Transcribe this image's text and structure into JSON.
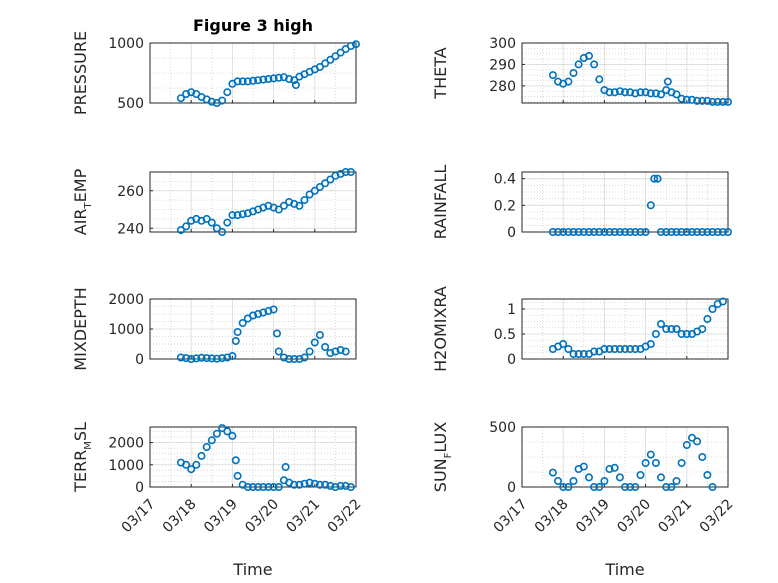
{
  "figure": {
    "title": "Figure 3 high",
    "xlabel": "Time",
    "date_ticks": [
      "03/17",
      "03/18",
      "03/19",
      "03/20",
      "03/21",
      "03/22"
    ],
    "marker_color": "#0072BD"
  },
  "chart_data": [
    {
      "type": "scatter",
      "ylabel": "PRESSURE",
      "ylim": [
        500,
        1000
      ],
      "yticks": [
        500,
        1000
      ],
      "grid": true,
      "x_range": [
        "2019-03-17",
        "2019-03-22"
      ],
      "points": [
        [
          "03/17 18:00",
          540
        ],
        [
          "03/17 21:00",
          575
        ],
        [
          "03/18 00:00",
          590
        ],
        [
          "03/18 03:00",
          575
        ],
        [
          "03/18 06:00",
          550
        ],
        [
          "03/18 09:00",
          530
        ],
        [
          "03/18 12:00",
          510
        ],
        [
          "03/18 15:00",
          500
        ],
        [
          "03/18 18:00",
          520
        ],
        [
          "03/18 21:00",
          590
        ],
        [
          "03/19 00:00",
          660
        ],
        [
          "03/19 03:00",
          680
        ],
        [
          "03/19 06:00",
          680
        ],
        [
          "03/19 09:00",
          680
        ],
        [
          "03/19 12:00",
          685
        ],
        [
          "03/19 15:00",
          690
        ],
        [
          "03/19 18:00",
          695
        ],
        [
          "03/19 21:00",
          700
        ],
        [
          "03/20 00:00",
          705
        ],
        [
          "03/20 03:00",
          710
        ],
        [
          "03/20 06:00",
          715
        ],
        [
          "03/20 09:00",
          700
        ],
        [
          "03/20 12:00",
          690
        ],
        [
          "03/20 13:00",
          650
        ],
        [
          "03/20 15:00",
          720
        ],
        [
          "03/20 18:00",
          740
        ],
        [
          "03/20 21:00",
          760
        ],
        [
          "03/21 00:00",
          780
        ],
        [
          "03/21 03:00",
          800
        ],
        [
          "03/21 06:00",
          830
        ],
        [
          "03/21 09:00",
          860
        ],
        [
          "03/21 12:00",
          890
        ],
        [
          "03/21 15:00",
          920
        ],
        [
          "03/21 18:00",
          950
        ],
        [
          "03/21 21:00",
          975
        ],
        [
          "03/22 00:00",
          990
        ]
      ]
    },
    {
      "type": "scatter",
      "ylabel": "THETA",
      "ylim": [
        272,
        300
      ],
      "yticks": [
        280,
        290,
        300
      ],
      "grid": true,
      "x_range": [
        "2019-03-17",
        "2019-03-22"
      ],
      "points": [
        [
          "03/17 18:00",
          285
        ],
        [
          "03/17 21:00",
          282
        ],
        [
          "03/18 00:00",
          281
        ],
        [
          "03/18 03:00",
          282
        ],
        [
          "03/18 06:00",
          286
        ],
        [
          "03/18 09:00",
          290
        ],
        [
          "03/18 12:00",
          293
        ],
        [
          "03/18 15:00",
          294
        ],
        [
          "03/18 18:00",
          290
        ],
        [
          "03/18 21:00",
          283
        ],
        [
          "03/19 00:00",
          278
        ],
        [
          "03/19 03:00",
          277
        ],
        [
          "03/19 06:00",
          277
        ],
        [
          "03/19 09:00",
          277.5
        ],
        [
          "03/19 12:00",
          277
        ],
        [
          "03/19 15:00",
          277
        ],
        [
          "03/19 18:00",
          276.5
        ],
        [
          "03/19 21:00",
          277
        ],
        [
          "03/20 00:00",
          277
        ],
        [
          "03/20 03:00",
          276.5
        ],
        [
          "03/20 06:00",
          276.5
        ],
        [
          "03/20 09:00",
          276
        ],
        [
          "03/20 12:00",
          278
        ],
        [
          "03/20 13:00",
          282
        ],
        [
          "03/20 15:00",
          277
        ],
        [
          "03/20 18:00",
          276
        ],
        [
          "03/20 21:00",
          274
        ],
        [
          "03/21 00:00",
          273.5
        ],
        [
          "03/21 03:00",
          273.5
        ],
        [
          "03/21 06:00",
          273
        ],
        [
          "03/21 09:00",
          273
        ],
        [
          "03/21 12:00",
          273
        ],
        [
          "03/21 15:00",
          272.5
        ],
        [
          "03/21 18:00",
          272.5
        ],
        [
          "03/21 21:00",
          272.5
        ],
        [
          "03/22 00:00",
          272.5
        ]
      ]
    },
    {
      "type": "scatter",
      "ylabel": "AIR_TEMP",
      "ylabel_parts": [
        "AIR",
        "T",
        "EMP"
      ],
      "ylim": [
        238,
        270
      ],
      "yticks": [
        240,
        260
      ],
      "grid": true,
      "x_range": [
        "2019-03-17",
        "2019-03-22"
      ],
      "points": [
        [
          "03/17 18:00",
          239
        ],
        [
          "03/17 21:00",
          241
        ],
        [
          "03/18 00:00",
          244
        ],
        [
          "03/18 03:00",
          245
        ],
        [
          "03/18 06:00",
          244
        ],
        [
          "03/18 09:00",
          245
        ],
        [
          "03/18 12:00",
          243
        ],
        [
          "03/18 15:00",
          240
        ],
        [
          "03/18 18:00",
          238
        ],
        [
          "03/18 21:00",
          243
        ],
        [
          "03/19 00:00",
          247
        ],
        [
          "03/19 03:00",
          247
        ],
        [
          "03/19 06:00",
          247.5
        ],
        [
          "03/19 09:00",
          248
        ],
        [
          "03/19 12:00",
          249
        ],
        [
          "03/19 15:00",
          250
        ],
        [
          "03/19 18:00",
          251
        ],
        [
          "03/19 21:00",
          252
        ],
        [
          "03/20 00:00",
          251
        ],
        [
          "03/20 03:00",
          250
        ],
        [
          "03/20 06:00",
          252
        ],
        [
          "03/20 09:00",
          254
        ],
        [
          "03/20 12:00",
          253
        ],
        [
          "03/20 15:00",
          252
        ],
        [
          "03/20 18:00",
          255
        ],
        [
          "03/20 21:00",
          258
        ],
        [
          "03/21 00:00",
          260
        ],
        [
          "03/21 03:00",
          262
        ],
        [
          "03/21 06:00",
          264
        ],
        [
          "03/21 09:00",
          266
        ],
        [
          "03/21 12:00",
          268
        ],
        [
          "03/21 15:00",
          269
        ],
        [
          "03/21 18:00",
          270
        ],
        [
          "03/21 21:00",
          270
        ]
      ]
    },
    {
      "type": "scatter",
      "ylabel": "RAINFALL",
      "ylim": [
        0,
        0.45
      ],
      "yticks": [
        0,
        0.2,
        0.4
      ],
      "grid": true,
      "x_range": [
        "2019-03-17",
        "2019-03-22"
      ],
      "points": [
        [
          "03/17 18:00",
          0
        ],
        [
          "03/17 21:00",
          0
        ],
        [
          "03/18 00:00",
          0
        ],
        [
          "03/18 03:00",
          0
        ],
        [
          "03/18 06:00",
          0
        ],
        [
          "03/18 09:00",
          0
        ],
        [
          "03/18 12:00",
          0
        ],
        [
          "03/18 15:00",
          0
        ],
        [
          "03/18 18:00",
          0
        ],
        [
          "03/18 21:00",
          0
        ],
        [
          "03/19 00:00",
          0
        ],
        [
          "03/19 03:00",
          0
        ],
        [
          "03/19 06:00",
          0
        ],
        [
          "03/19 09:00",
          0
        ],
        [
          "03/19 12:00",
          0
        ],
        [
          "03/19 15:00",
          0
        ],
        [
          "03/19 18:00",
          0
        ],
        [
          "03/19 21:00",
          0
        ],
        [
          "03/20 00:00",
          0
        ],
        [
          "03/20 03:00",
          0.2
        ],
        [
          "03/20 05:00",
          0.4
        ],
        [
          "03/20 07:00",
          0.4
        ],
        [
          "03/20 09:00",
          0
        ],
        [
          "03/20 12:00",
          0
        ],
        [
          "03/20 15:00",
          0
        ],
        [
          "03/20 18:00",
          0
        ],
        [
          "03/20 21:00",
          0
        ],
        [
          "03/21 00:00",
          0
        ],
        [
          "03/21 03:00",
          0
        ],
        [
          "03/21 06:00",
          0
        ],
        [
          "03/21 09:00",
          0
        ],
        [
          "03/21 12:00",
          0
        ],
        [
          "03/21 15:00",
          0
        ],
        [
          "03/21 18:00",
          0
        ],
        [
          "03/21 21:00",
          0
        ],
        [
          "03/22 00:00",
          0
        ]
      ]
    },
    {
      "type": "scatter",
      "ylabel": "MIXDEPTH",
      "ylim": [
        0,
        2000
      ],
      "yticks": [
        0,
        1000,
        2000
      ],
      "grid": true,
      "x_range": [
        "2019-03-17",
        "2019-03-22"
      ],
      "points": [
        [
          "03/17 18:00",
          50
        ],
        [
          "03/17 21:00",
          30
        ],
        [
          "03/18 00:00",
          0
        ],
        [
          "03/18 03:00",
          20
        ],
        [
          "03/18 06:00",
          40
        ],
        [
          "03/18 09:00",
          30
        ],
        [
          "03/18 12:00",
          20
        ],
        [
          "03/18 15:00",
          10
        ],
        [
          "03/18 18:00",
          30
        ],
        [
          "03/18 21:00",
          50
        ],
        [
          "03/19 00:00",
          100
        ],
        [
          "03/19 02:00",
          600
        ],
        [
          "03/19 03:00",
          900
        ],
        [
          "03/19 06:00",
          1200
        ],
        [
          "03/19 09:00",
          1350
        ],
        [
          "03/19 12:00",
          1450
        ],
        [
          "03/19 15:00",
          1500
        ],
        [
          "03/19 18:00",
          1550
        ],
        [
          "03/19 21:00",
          1600
        ],
        [
          "03/20 00:00",
          1650
        ],
        [
          "03/20 02:00",
          850
        ],
        [
          "03/20 03:00",
          250
        ],
        [
          "03/20 06:00",
          50
        ],
        [
          "03/20 09:00",
          0
        ],
        [
          "03/20 12:00",
          0
        ],
        [
          "03/20 15:00",
          0
        ],
        [
          "03/20 18:00",
          50
        ],
        [
          "03/20 21:00",
          250
        ],
        [
          "03/21 00:00",
          550
        ],
        [
          "03/21 03:00",
          800
        ],
        [
          "03/21 06:00",
          400
        ],
        [
          "03/21 09:00",
          200
        ],
        [
          "03/21 12:00",
          250
        ],
        [
          "03/21 15:00",
          300
        ],
        [
          "03/21 18:00",
          250
        ]
      ]
    },
    {
      "type": "scatter",
      "ylabel": "H2OMIXRA",
      "ylim": [
        0,
        1.2
      ],
      "yticks": [
        0,
        0.5,
        1
      ],
      "grid": true,
      "x_range": [
        "2019-03-17",
        "2019-03-22"
      ],
      "points": [
        [
          "03/17 18:00",
          0.2
        ],
        [
          "03/17 21:00",
          0.25
        ],
        [
          "03/18 00:00",
          0.3
        ],
        [
          "03/18 03:00",
          0.2
        ],
        [
          "03/18 06:00",
          0.1
        ],
        [
          "03/18 09:00",
          0.1
        ],
        [
          "03/18 12:00",
          0.1
        ],
        [
          "03/18 15:00",
          0.1
        ],
        [
          "03/18 18:00",
          0.15
        ],
        [
          "03/18 21:00",
          0.15
        ],
        [
          "03/19 00:00",
          0.2
        ],
        [
          "03/19 03:00",
          0.2
        ],
        [
          "03/19 06:00",
          0.2
        ],
        [
          "03/19 09:00",
          0.2
        ],
        [
          "03/19 12:00",
          0.2
        ],
        [
          "03/19 15:00",
          0.2
        ],
        [
          "03/19 18:00",
          0.2
        ],
        [
          "03/19 21:00",
          0.2
        ],
        [
          "03/20 00:00",
          0.25
        ],
        [
          "03/20 03:00",
          0.3
        ],
        [
          "03/20 06:00",
          0.5
        ],
        [
          "03/20 09:00",
          0.7
        ],
        [
          "03/20 12:00",
          0.6
        ],
        [
          "03/20 15:00",
          0.6
        ],
        [
          "03/20 18:00",
          0.6
        ],
        [
          "03/20 21:00",
          0.5
        ],
        [
          "03/21 00:00",
          0.5
        ],
        [
          "03/21 03:00",
          0.5
        ],
        [
          "03/21 06:00",
          0.55
        ],
        [
          "03/21 09:00",
          0.6
        ],
        [
          "03/21 12:00",
          0.8
        ],
        [
          "03/21 15:00",
          1.0
        ],
        [
          "03/21 18:00",
          1.1
        ],
        [
          "03/21 21:00",
          1.15
        ]
      ]
    },
    {
      "type": "scatter",
      "ylabel": "TERR_MSL",
      "ylabel_parts": [
        "TERR",
        "M",
        "SL"
      ],
      "ylim": [
        0,
        2700
      ],
      "yticks": [
        0,
        1000,
        2000
      ],
      "grid": true,
      "x_range": [
        "2019-03-17",
        "2019-03-22"
      ],
      "points": [
        [
          "03/17 18:00",
          1100
        ],
        [
          "03/17 21:00",
          1000
        ],
        [
          "03/18 00:00",
          800
        ],
        [
          "03/18 03:00",
          1000
        ],
        [
          "03/18 06:00",
          1400
        ],
        [
          "03/18 09:00",
          1800
        ],
        [
          "03/18 12:00",
          2100
        ],
        [
          "03/18 15:00",
          2400
        ],
        [
          "03/18 18:00",
          2650
        ],
        [
          "03/18 21:00",
          2500
        ],
        [
          "03/19 00:00",
          2300
        ],
        [
          "03/19 02:00",
          1200
        ],
        [
          "03/19 03:00",
          500
        ],
        [
          "03/19 06:00",
          100
        ],
        [
          "03/19 09:00",
          0
        ],
        [
          "03/19 12:00",
          0
        ],
        [
          "03/19 15:00",
          0
        ],
        [
          "03/19 18:00",
          0
        ],
        [
          "03/19 21:00",
          0
        ],
        [
          "03/20 00:00",
          0
        ],
        [
          "03/20 03:00",
          0
        ],
        [
          "03/20 06:00",
          300
        ],
        [
          "03/20 07:00",
          900
        ],
        [
          "03/20 09:00",
          200
        ],
        [
          "03/20 12:00",
          100
        ],
        [
          "03/20 15:00",
          100
        ],
        [
          "03/20 18:00",
          150
        ],
        [
          "03/20 21:00",
          200
        ],
        [
          "03/21 00:00",
          150
        ],
        [
          "03/21 03:00",
          100
        ],
        [
          "03/21 06:00",
          100
        ],
        [
          "03/21 09:00",
          50
        ],
        [
          "03/21 12:00",
          0
        ],
        [
          "03/21 15:00",
          50
        ],
        [
          "03/21 18:00",
          50
        ],
        [
          "03/21 21:00",
          0
        ]
      ]
    },
    {
      "type": "scatter",
      "ylabel": "SUN_FLUX",
      "ylabel_parts": [
        "SUN",
        "F",
        "LUX"
      ],
      "ylim": [
        0,
        500
      ],
      "yticks": [
        0,
        500
      ],
      "grid": true,
      "x_range": [
        "2019-03-17",
        "2019-03-22"
      ],
      "points": [
        [
          "03/17 18:00",
          120
        ],
        [
          "03/17 21:00",
          50
        ],
        [
          "03/18 00:00",
          0
        ],
        [
          "03/18 03:00",
          0
        ],
        [
          "03/18 06:00",
          50
        ],
        [
          "03/18 09:00",
          150
        ],
        [
          "03/18 12:00",
          170
        ],
        [
          "03/18 15:00",
          80
        ],
        [
          "03/18 18:00",
          0
        ],
        [
          "03/18 21:00",
          0
        ],
        [
          "03/19 00:00",
          50
        ],
        [
          "03/19 03:00",
          150
        ],
        [
          "03/19 06:00",
          160
        ],
        [
          "03/19 09:00",
          80
        ],
        [
          "03/19 12:00",
          0
        ],
        [
          "03/19 15:00",
          0
        ],
        [
          "03/19 18:00",
          0
        ],
        [
          "03/19 21:00",
          100
        ],
        [
          "03/20 00:00",
          200
        ],
        [
          "03/20 03:00",
          270
        ],
        [
          "03/20 06:00",
          200
        ],
        [
          "03/20 09:00",
          80
        ],
        [
          "03/20 12:00",
          0
        ],
        [
          "03/20 15:00",
          0
        ],
        [
          "03/20 18:00",
          50
        ],
        [
          "03/20 21:00",
          200
        ],
        [
          "03/21 00:00",
          350
        ],
        [
          "03/21 03:00",
          410
        ],
        [
          "03/21 06:00",
          380
        ],
        [
          "03/21 09:00",
          250
        ],
        [
          "03/21 12:00",
          100
        ],
        [
          "03/21 15:00",
          0
        ]
      ]
    }
  ]
}
